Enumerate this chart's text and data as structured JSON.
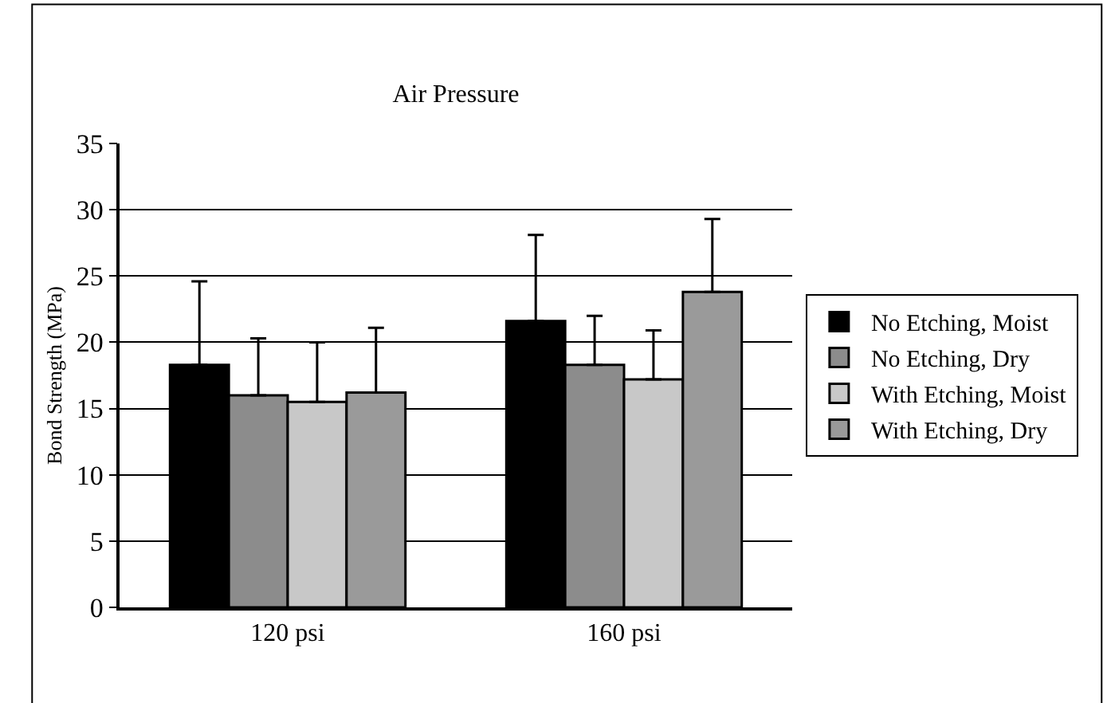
{
  "chart_data": {
    "type": "bar",
    "title": "Air Pressure",
    "ylabel": "Bond Strength (MPa)",
    "categories": [
      "120 psi",
      "160 psi"
    ],
    "series": [
      {
        "name": "No Etching, Moist",
        "color": "#000000",
        "values": [
          18.3,
          21.6
        ],
        "errors": [
          [
            18.3,
            24.6
          ],
          [
            21.6,
            28.1
          ]
        ]
      },
      {
        "name": "No Etching, Dry",
        "color": "#8c8c8c",
        "values": [
          16,
          18.3
        ],
        "errors": [
          [
            16,
            20.3
          ],
          [
            18.3,
            22
          ]
        ]
      },
      {
        "name": "With Etching, Moist",
        "color": "#c8c8c8",
        "values": [
          15.5,
          17.2
        ],
        "errors": [
          [
            15.5,
            20
          ],
          [
            17.2,
            20.9
          ]
        ]
      },
      {
        "name": "With Etching, Dry",
        "color": "#9a9a9a",
        "values": [
          16.2,
          23.8
        ],
        "errors": [
          [
            16.2,
            21.1
          ],
          [
            23.8,
            29.3
          ]
        ]
      }
    ],
    "ylim": [
      0,
      35
    ],
    "yticks": [
      0,
      5,
      10,
      15,
      20,
      25,
      30,
      35
    ],
    "grid": "y",
    "legend": "right"
  }
}
